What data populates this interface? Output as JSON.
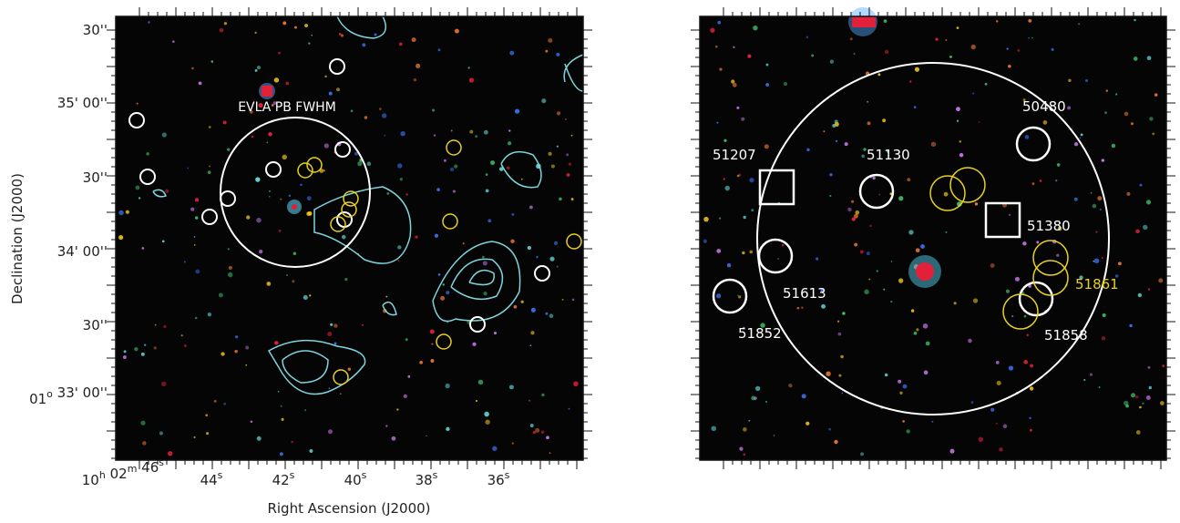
{
  "left_panel": {
    "annotation": "EVLA PB FWHM",
    "y_axis_label": "Declination (J2000)",
    "x_axis_label": "Right Ascension (J2000)",
    "y_tick_labels": [
      {
        "parts": [
          {
            "t": "30''"
          }
        ]
      },
      {
        "parts": [
          {
            "t": "35' 00''"
          }
        ]
      },
      {
        "parts": [
          {
            "t": "30''"
          }
        ]
      },
      {
        "parts": [
          {
            "t": "34' 00''"
          }
        ]
      },
      {
        "parts": [
          {
            "t": "30''"
          }
        ]
      },
      {
        "parts": [
          {
            "t": "01",
            "sup": "o"
          },
          {
            "t": " 33' 00''"
          }
        ]
      }
    ],
    "x_tick_labels": [
      {
        "parts": [
          {
            "t": "10",
            "sup": "h"
          },
          {
            "t": " 02",
            "sup": "m"
          },
          {
            "t": " 46",
            "sup": "s"
          }
        ]
      },
      {
        "parts": [
          {
            "t": "44",
            "sup": "s"
          }
        ]
      },
      {
        "parts": [
          {
            "t": "42",
            "sup": "s"
          }
        ]
      },
      {
        "parts": [
          {
            "t": "40",
            "sup": "s"
          }
        ]
      },
      {
        "parts": [
          {
            "t": "38",
            "sup": "s"
          }
        ]
      },
      {
        "parts": [
          {
            "t": "36",
            "sup": "s"
          }
        ]
      }
    ]
  },
  "right_panel": {
    "source_labels": [
      "50480",
      "51207",
      "51130",
      "51380",
      "51613",
      "51861",
      "51852",
      "51858"
    ]
  }
}
